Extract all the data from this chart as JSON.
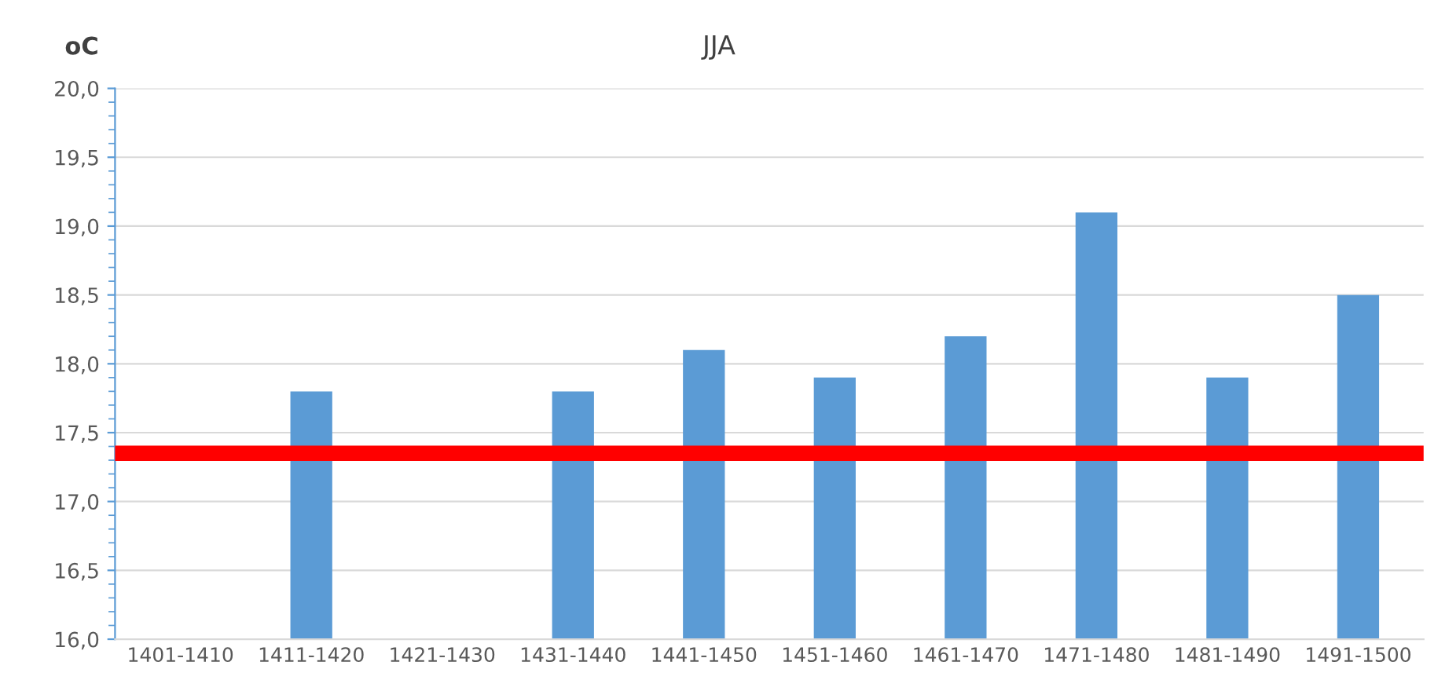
{
  "chart_data": {
    "type": "bar",
    "title": "JJA",
    "ylabel": "oC",
    "categories": [
      "1401-1410",
      "1411-1420",
      "1421-1430",
      "1431-1440",
      "1441-1450",
      "1451-1460",
      "1461-1470",
      "1471-1480",
      "1481-1490",
      "1491-1500"
    ],
    "values": [
      null,
      17.8,
      null,
      17.8,
      18.1,
      17.9,
      18.2,
      19.1,
      17.9,
      18.5
    ],
    "color": "#5b9bd5",
    "ylim": [
      16.0,
      20.0
    ],
    "yticks": [
      {
        "value": 16.0,
        "label": "16,0"
      },
      {
        "value": 16.5,
        "label": "16,5"
      },
      {
        "value": 17.0,
        "label": "17,0"
      },
      {
        "value": 17.5,
        "label": "17,5"
      },
      {
        "value": 18.0,
        "label": "18,0"
      },
      {
        "value": 18.5,
        "label": "18,5"
      },
      {
        "value": 19.0,
        "label": "19,0"
      },
      {
        "value": 19.5,
        "label": "19,5"
      },
      {
        "value": 20.0,
        "label": "20,0"
      }
    ],
    "grid": "y",
    "ref_lines": [
      {
        "axis": "y",
        "value": 17.35,
        "color": "#ff0000"
      }
    ]
  }
}
